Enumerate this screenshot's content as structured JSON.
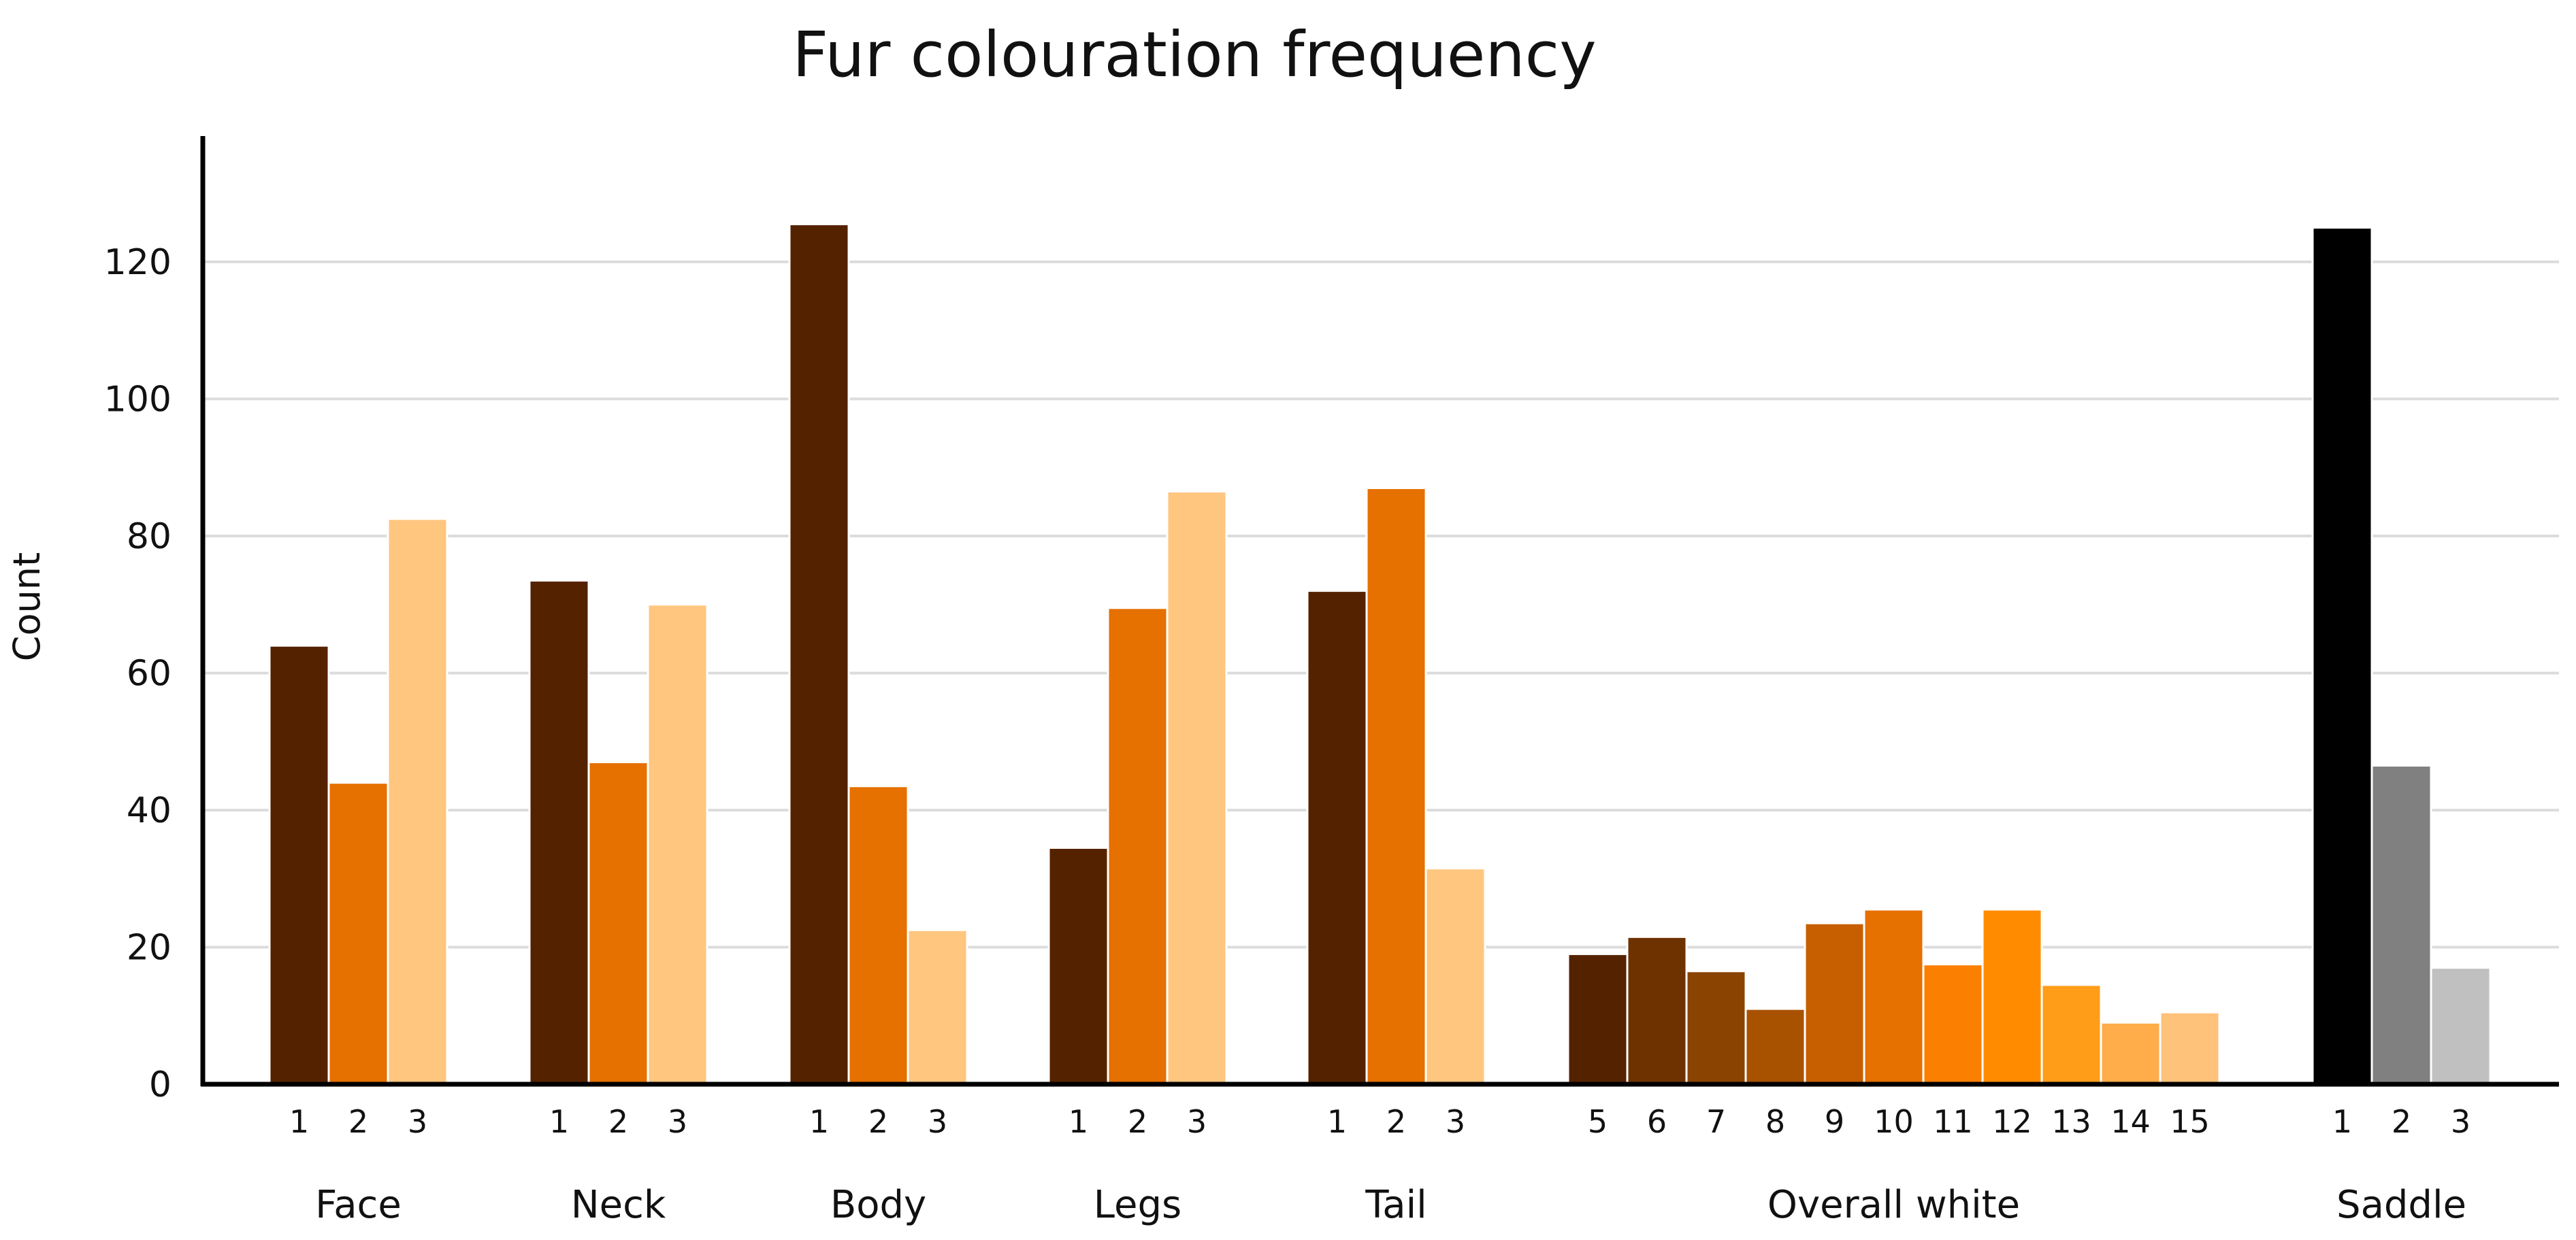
{
  "chart_data": {
    "type": "bar",
    "title": "Fur colouration frequency",
    "ylabel": "Count",
    "xlabel": "",
    "ylim": [
      0,
      140
    ],
    "yticks": [
      0,
      20,
      40,
      60,
      80,
      100,
      120
    ],
    "grid": true,
    "legend": "none",
    "groups": [
      {
        "name": "Face",
        "categories": [
          "1",
          "2",
          "3"
        ],
        "values": [
          64,
          44,
          82.5
        ],
        "colors": [
          "#552200",
          "#e67000",
          "#ffc67f"
        ]
      },
      {
        "name": "Neck",
        "categories": [
          "1",
          "2",
          "3"
        ],
        "values": [
          73.5,
          47,
          70
        ],
        "colors": [
          "#552200",
          "#e67000",
          "#ffc67f"
        ]
      },
      {
        "name": "Body",
        "categories": [
          "1",
          "2",
          "3"
        ],
        "values": [
          125.5,
          43.5,
          22.5
        ],
        "colors": [
          "#552200",
          "#e67000",
          "#ffc67f"
        ]
      },
      {
        "name": "Legs",
        "categories": [
          "1",
          "2",
          "3"
        ],
        "values": [
          34.5,
          69.5,
          86.5
        ],
        "colors": [
          "#552200",
          "#e67000",
          "#ffc67f"
        ]
      },
      {
        "name": "Tail",
        "categories": [
          "1",
          "2",
          "3"
        ],
        "values": [
          72,
          87,
          31.5
        ],
        "colors": [
          "#552200",
          "#e67000",
          "#ffc67f"
        ]
      },
      {
        "name": "Overall white",
        "categories": [
          "5",
          "6",
          "7",
          "8",
          "9",
          "10",
          "11",
          "12",
          "13",
          "14",
          "15"
        ],
        "values": [
          19,
          21.5,
          16.5,
          11,
          23.5,
          25.5,
          17.5,
          25.5,
          14.5,
          9,
          10.5
        ],
        "colors": [
          "#552200",
          "#6e3200",
          "#8a4300",
          "#a85200",
          "#c75f00",
          "#e67000",
          "#fb7f00",
          "#ff8c00",
          "#ff9d19",
          "#ffac4a",
          "#ffc27a"
        ]
      },
      {
        "name": "Saddle",
        "categories": [
          "1",
          "2",
          "3"
        ],
        "values": [
          125,
          46.5,
          17
        ],
        "colors": [
          "#000000",
          "#808080",
          "#c0c0c0"
        ]
      }
    ]
  }
}
